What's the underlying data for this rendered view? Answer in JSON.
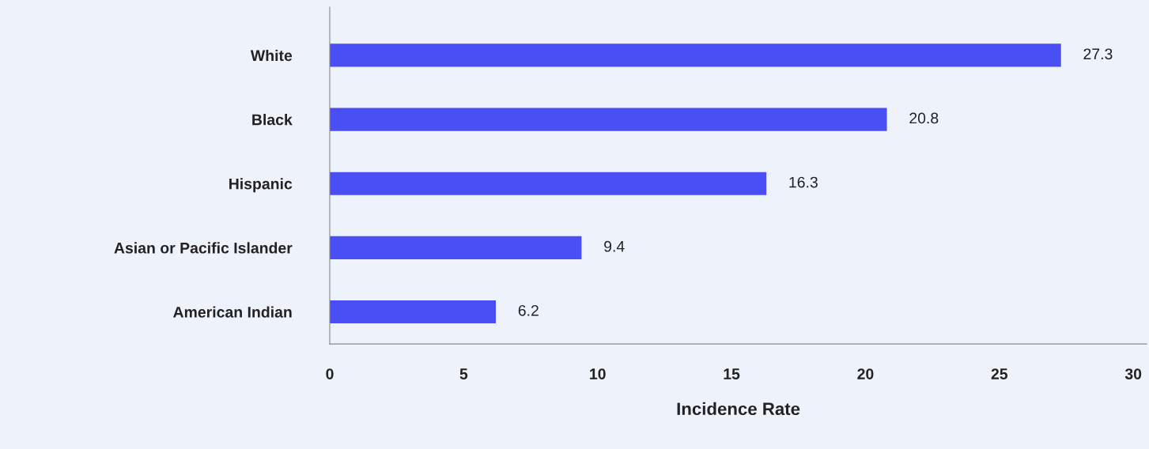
{
  "chart_data": {
    "type": "bar",
    "orientation": "horizontal",
    "xlabel": "Incidence Rate",
    "categories": [
      "White",
      "Black",
      "Hispanic",
      "Asian or Pacific Islander",
      "American Indian"
    ],
    "values": [
      27.3,
      20.8,
      16.3,
      9.4,
      6.2
    ],
    "color": "#4a4ef5",
    "xlim": [
      0,
      30.5
    ],
    "xticks": [
      0,
      5,
      10,
      15,
      20,
      25,
      30
    ],
    "grid": false,
    "data_labels": true
  }
}
